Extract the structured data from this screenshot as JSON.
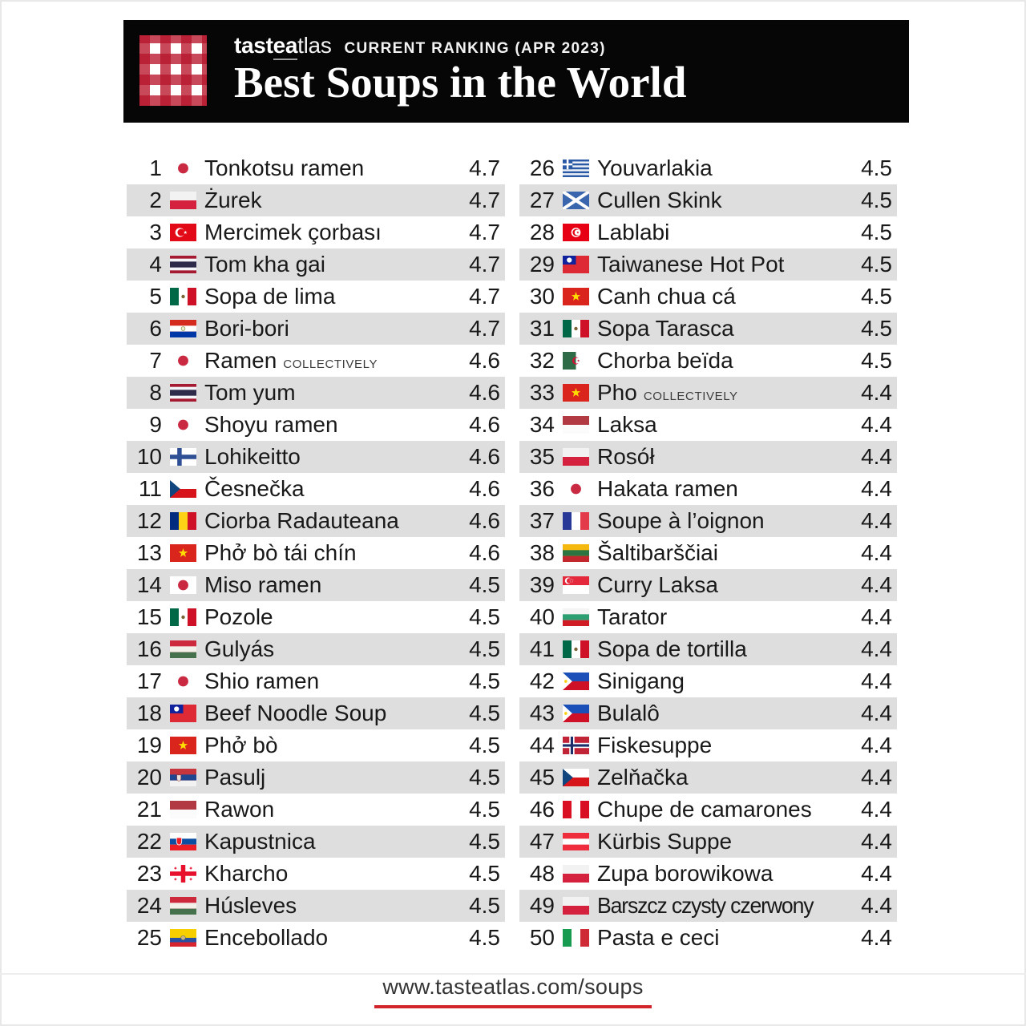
{
  "header": {
    "brand": {
      "pre": "tast",
      "mid": "ea",
      "post": "tlas"
    },
    "ranking_label": "CURRENT RANKING (APR 2023)",
    "title": "Best Soups in the World"
  },
  "footer": {
    "url": "www.tasteatlas.com/soups"
  },
  "colors": {
    "header_bg": "#060606",
    "accent_red": "#d2262c",
    "row_alt": "#dedede",
    "text": "#191919",
    "gingham_red": "#b7162c"
  },
  "list": {
    "rows": [
      {
        "rank": 1,
        "flag": "japan",
        "name": "Tonkotsu ramen",
        "note": "",
        "rating": "4.7"
      },
      {
        "rank": 2,
        "flag": "poland",
        "name": "Żurek",
        "note": "",
        "rating": "4.7"
      },
      {
        "rank": 3,
        "flag": "turkey",
        "name": "Mercimek çorbası",
        "note": "",
        "rating": "4.7"
      },
      {
        "rank": 4,
        "flag": "thailand",
        "name": "Tom kha gai",
        "note": "",
        "rating": "4.7"
      },
      {
        "rank": 5,
        "flag": "mexico",
        "name": "Sopa de lima",
        "note": "",
        "rating": "4.7"
      },
      {
        "rank": 6,
        "flag": "paraguay",
        "name": "Bori-bori",
        "note": "",
        "rating": "4.7"
      },
      {
        "rank": 7,
        "flag": "japan",
        "name": "Ramen",
        "note": "COLLECTIVELY",
        "rating": "4.6"
      },
      {
        "rank": 8,
        "flag": "thailand",
        "name": "Tom yum",
        "note": "",
        "rating": "4.6"
      },
      {
        "rank": 9,
        "flag": "japan",
        "name": "Shoyu ramen",
        "note": "",
        "rating": "4.6"
      },
      {
        "rank": 10,
        "flag": "finland",
        "name": "Lohikeitto",
        "note": "",
        "rating": "4.6"
      },
      {
        "rank": 11,
        "flag": "czechia",
        "name": "Česnečka",
        "note": "",
        "rating": "4.6"
      },
      {
        "rank": 12,
        "flag": "romania",
        "name": "Ciorba Radauteana",
        "note": "",
        "rating": "4.6"
      },
      {
        "rank": 13,
        "flag": "vietnam",
        "name": "Phở bò tái chín",
        "note": "",
        "rating": "4.6"
      },
      {
        "rank": 14,
        "flag": "japan",
        "name": "Miso ramen",
        "note": "",
        "rating": "4.5"
      },
      {
        "rank": 15,
        "flag": "mexico",
        "name": "Pozole",
        "note": "",
        "rating": "4.5"
      },
      {
        "rank": 16,
        "flag": "hungary",
        "name": "Gulyás",
        "note": "",
        "rating": "4.5"
      },
      {
        "rank": 17,
        "flag": "japan",
        "name": "Shio ramen",
        "note": "",
        "rating": "4.5"
      },
      {
        "rank": 18,
        "flag": "taiwan",
        "name": "Beef Noodle Soup",
        "note": "",
        "rating": "4.5"
      },
      {
        "rank": 19,
        "flag": "vietnam",
        "name": "Phở bò",
        "note": "",
        "rating": "4.5"
      },
      {
        "rank": 20,
        "flag": "serbia",
        "name": "Pasulj",
        "note": "",
        "rating": "4.5"
      },
      {
        "rank": 21,
        "flag": "indonesia",
        "name": "Rawon",
        "note": "",
        "rating": "4.5"
      },
      {
        "rank": 22,
        "flag": "slovakia",
        "name": "Kapustnica",
        "note": "",
        "rating": "4.5"
      },
      {
        "rank": 23,
        "flag": "georgia",
        "name": "Kharcho",
        "note": "",
        "rating": "4.5"
      },
      {
        "rank": 24,
        "flag": "hungary",
        "name": "Húsleves",
        "note": "",
        "rating": "4.5"
      },
      {
        "rank": 25,
        "flag": "ecuador",
        "name": "Encebollado",
        "note": "",
        "rating": "4.5"
      },
      {
        "rank": 26,
        "flag": "greece",
        "name": "Youvarlakia",
        "note": "",
        "rating": "4.5"
      },
      {
        "rank": 27,
        "flag": "scotland",
        "name": "Cullen Skink",
        "note": "",
        "rating": "4.5"
      },
      {
        "rank": 28,
        "flag": "tunisia",
        "name": "Lablabi",
        "note": "",
        "rating": "4.5"
      },
      {
        "rank": 29,
        "flag": "taiwan",
        "name": "Taiwanese Hot Pot",
        "note": "",
        "rating": "4.5"
      },
      {
        "rank": 30,
        "flag": "vietnam",
        "name": "Canh chua cá",
        "note": "",
        "rating": "4.5"
      },
      {
        "rank": 31,
        "flag": "mexico",
        "name": "Sopa Tarasca",
        "note": "",
        "rating": "4.5"
      },
      {
        "rank": 32,
        "flag": "algeria",
        "name": "Chorba beïda",
        "note": "",
        "rating": "4.5"
      },
      {
        "rank": 33,
        "flag": "vietnam",
        "name": "Pho",
        "note": "COLLECTIVELY",
        "rating": "4.4"
      },
      {
        "rank": 34,
        "flag": "indonesia",
        "name": "Laksa",
        "note": "",
        "rating": "4.4"
      },
      {
        "rank": 35,
        "flag": "poland",
        "name": "Rosół",
        "note": "",
        "rating": "4.4"
      },
      {
        "rank": 36,
        "flag": "japan",
        "name": "Hakata ramen",
        "note": "",
        "rating": "4.4"
      },
      {
        "rank": 37,
        "flag": "france",
        "name": "Soupe à l’oignon",
        "note": "",
        "rating": "4.4"
      },
      {
        "rank": 38,
        "flag": "lithuania",
        "name": "Šaltibarščiai",
        "note": "",
        "rating": "4.4"
      },
      {
        "rank": 39,
        "flag": "singapore",
        "name": "Curry Laksa",
        "note": "",
        "rating": "4.4"
      },
      {
        "rank": 40,
        "flag": "bulgaria",
        "name": "Tarator",
        "note": "",
        "rating": "4.4"
      },
      {
        "rank": 41,
        "flag": "mexico",
        "name": "Sopa de tortilla",
        "note": "",
        "rating": "4.4"
      },
      {
        "rank": 42,
        "flag": "philippines",
        "name": "Sinigang",
        "note": "",
        "rating": "4.4"
      },
      {
        "rank": 43,
        "flag": "philippines",
        "name": "Bulalô",
        "note": "",
        "rating": "4.4"
      },
      {
        "rank": 44,
        "flag": "norway",
        "name": "Fiskesuppe",
        "note": "",
        "rating": "4.4"
      },
      {
        "rank": 45,
        "flag": "czechia",
        "name": "Zelňačka",
        "note": "",
        "rating": "4.4"
      },
      {
        "rank": 46,
        "flag": "peru",
        "name": "Chupe de camarones",
        "note": "",
        "rating": "4.4"
      },
      {
        "rank": 47,
        "flag": "austria",
        "name": "Kürbis Suppe",
        "note": "",
        "rating": "4.4"
      },
      {
        "rank": 48,
        "flag": "poland",
        "name": "Zupa borowikowa",
        "note": "",
        "rating": "4.4"
      },
      {
        "rank": 49,
        "flag": "poland",
        "name": "Barszcz czysty czerwony",
        "note": "",
        "rating": "4.4"
      },
      {
        "rank": 50,
        "flag": "italy",
        "name": "Pasta e ceci",
        "note": "",
        "rating": "4.4"
      }
    ]
  }
}
